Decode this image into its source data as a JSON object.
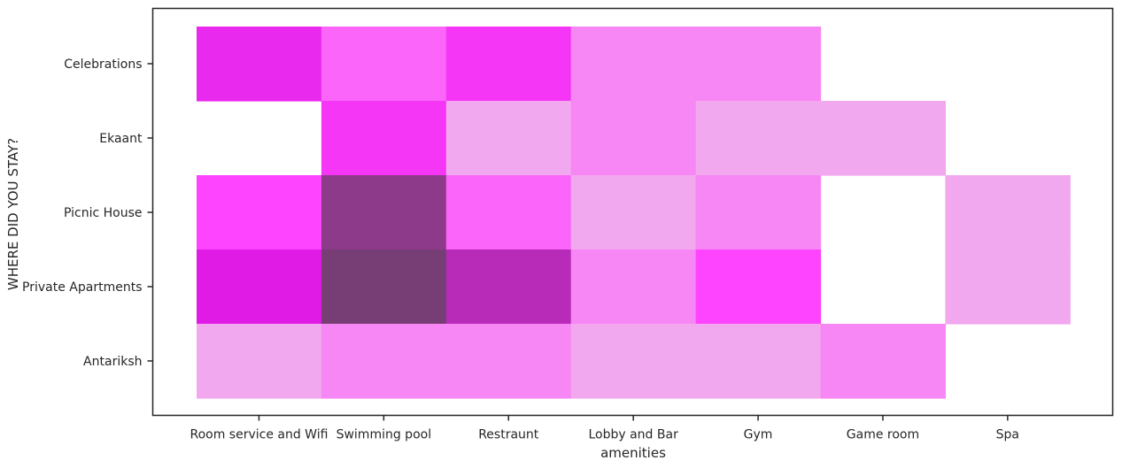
{
  "chart_data": {
    "type": "heatmap",
    "title": "",
    "xlabel": "amenities",
    "ylabel": "WHERE DID YOU STAY?",
    "x_categories": [
      "Room service and Wifi",
      "Swimming pool",
      "Restraunt",
      "Lobby and Bar",
      "Gym",
      "Game room",
      "Spa"
    ],
    "y_categories": [
      "Celebrations",
      "Ekaant",
      "Picnic House",
      "Private Apartments",
      "Antariksh"
    ],
    "values": [
      [
        6,
        3,
        5,
        2,
        2,
        null,
        null
      ],
      [
        null,
        5,
        1,
        2,
        1,
        1,
        null
      ],
      [
        4,
        9,
        3,
        1,
        2,
        null,
        1
      ],
      [
        7,
        11,
        8,
        2,
        4,
        null,
        1
      ],
      [
        1,
        2,
        2,
        1,
        1,
        2,
        null
      ]
    ],
    "colormap": {
      "low": "#f2a8ee",
      "mid": "#ff44ff",
      "high_mid": "#e01be6",
      "max": "#8e3a8a",
      "peak": "#763e75"
    },
    "grid": false,
    "legend": "none"
  }
}
